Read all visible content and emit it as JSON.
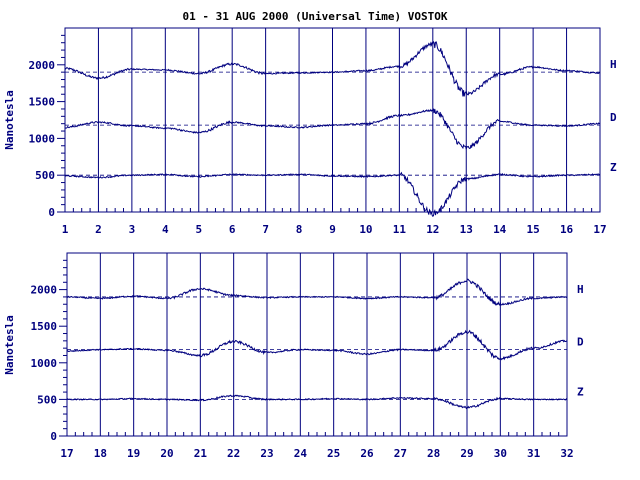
{
  "colors": {
    "ink": "#00007f",
    "background": "#ffffff"
  },
  "chart_data": [
    {
      "type": "line",
      "title": "01 - 31 AUG 2000 (Universal Time) VOSTOK",
      "ylabel": "Nanotesla",
      "xlabel": "",
      "xlim": [
        1,
        17
      ],
      "ylim": [
        0,
        2500
      ],
      "x_ticks": [
        "1",
        "2",
        "3",
        "4",
        "5",
        "6",
        "7",
        "8",
        "9",
        "10",
        "11",
        "12",
        "13",
        "14",
        "15",
        "16",
        "17"
      ],
      "y_ticks": [
        {
          "value": 0,
          "label": "0"
        },
        {
          "value": 500,
          "label": "500"
        },
        {
          "value": 1000,
          "label": "1000"
        },
        {
          "value": 1500,
          "label": "1500"
        },
        {
          "value": 2000,
          "label": "2000"
        }
      ],
      "grid": "vertical lines at each day",
      "series": [
        {
          "name": "H",
          "baseline": 1900,
          "values": [
            1950,
            1820,
            1940,
            1930,
            1880,
            2010,
            1880,
            1890,
            1900,
            1920,
            1980,
            2280,
            1600,
            1870,
            1970,
            1920,
            1890
          ]
        },
        {
          "name": "D",
          "baseline": 1180,
          "values": [
            1150,
            1220,
            1170,
            1140,
            1080,
            1220,
            1170,
            1150,
            1180,
            1200,
            1310,
            1380,
            870,
            1230,
            1180,
            1170,
            1200
          ]
        },
        {
          "name": "Z",
          "baseline": 500,
          "values": [
            490,
            470,
            500,
            510,
            480,
            510,
            500,
            510,
            490,
            480,
            500,
            -20,
            450,
            510,
            480,
            500,
            510
          ]
        }
      ]
    },
    {
      "type": "line",
      "title": "",
      "ylabel": "Nanotesla",
      "xlabel": "",
      "xlim": [
        17,
        32
      ],
      "ylim": [
        0,
        2500
      ],
      "x_ticks": [
        "17",
        "18",
        "19",
        "20",
        "21",
        "22",
        "23",
        "24",
        "25",
        "26",
        "27",
        "28",
        "29",
        "30",
        "31",
        "32"
      ],
      "y_ticks": [
        {
          "value": 0,
          "label": "0"
        },
        {
          "value": 500,
          "label": "500"
        },
        {
          "value": 1000,
          "label": "1000"
        },
        {
          "value": 1500,
          "label": "1500"
        },
        {
          "value": 2000,
          "label": "2000"
        }
      ],
      "grid": "vertical lines at each day",
      "series": [
        {
          "name": "H",
          "baseline": 1900,
          "values": [
            1900,
            1880,
            1910,
            1880,
            2010,
            1920,
            1890,
            1900,
            1900,
            1880,
            1900,
            1890,
            2120,
            1800,
            1880,
            1900
          ]
        },
        {
          "name": "D",
          "baseline": 1180,
          "values": [
            1160,
            1180,
            1190,
            1170,
            1100,
            1290,
            1140,
            1180,
            1170,
            1120,
            1180,
            1170,
            1420,
            1060,
            1200,
            1300
          ]
        },
        {
          "name": "Z",
          "baseline": 500,
          "values": [
            500,
            500,
            510,
            500,
            490,
            550,
            500,
            500,
            510,
            500,
            520,
            510,
            390,
            510,
            500,
            500
          ]
        }
      ]
    }
  ]
}
